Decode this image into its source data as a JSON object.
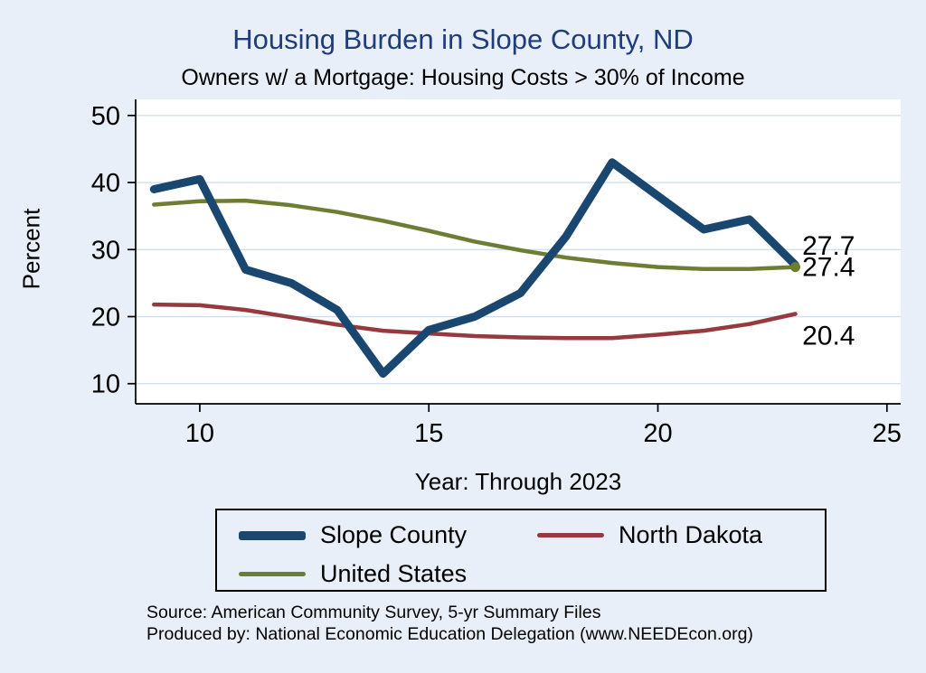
{
  "title": "Housing Burden in Slope County, ND",
  "subtitle": "Owners w/ a Mortgage: Housing Costs > 30% of Income",
  "y_axis_label": "Percent",
  "x_axis_label": "Year: Through 2023",
  "source_line1": "Source: American Community Survey, 5-yr Summary Files",
  "source_line2": "Produced by: National Economic Education Delegation (www.NEEDEcon.org)",
  "legend": {
    "position": "bottom",
    "items": [
      {
        "label": "Slope County",
        "color": "#1a476f",
        "thick": true
      },
      {
        "label": "North Dakota",
        "color": "#953a3e",
        "thick": false
      },
      {
        "label": "United States",
        "color": "#6d7d33",
        "thick": false
      }
    ]
  },
  "colors": {
    "background": "#e9eff8",
    "plot_background": "#ffffff",
    "title": "#1f3d7a",
    "axis": "#000000",
    "gridline": "#cfe0f1"
  },
  "chart_data": {
    "type": "line",
    "title": "Housing Burden in Slope County, ND",
    "subtitle": "Owners w/ a Mortgage: Housing Costs > 30% of Income",
    "xlabel": "Year: Through 2023",
    "ylabel": "Percent",
    "grid": true,
    "legend_position": "bottom",
    "grid_color": "#cfe0f1",
    "x": [
      9,
      10,
      11,
      12,
      13,
      14,
      15,
      16,
      17,
      18,
      19,
      20,
      21,
      22,
      23
    ],
    "x_ticks": [
      10,
      15,
      20,
      25
    ],
    "y_ticks": [
      10,
      20,
      30,
      40,
      50
    ],
    "x_range": [
      8.6,
      25.3
    ],
    "y_range": [
      7,
      52.4
    ],
    "series": [
      {
        "id": "united-states",
        "name": "United States",
        "color": "#6d7d33",
        "width": 4.5,
        "values": [
          36.7,
          37.2,
          37.3,
          36.6,
          35.6,
          34.3,
          32.8,
          31.2,
          29.9,
          28.8,
          28.0,
          27.4,
          27.1,
          27.1,
          27.4
        ],
        "end_label": {
          "text": "27.4",
          "x": 23.15,
          "y": 27.4
        },
        "end_marker": true
      },
      {
        "id": "north-dakota",
        "name": "North Dakota",
        "color": "#953a3e",
        "width": 4.5,
        "values": [
          21.8,
          21.7,
          21.0,
          19.9,
          18.8,
          17.9,
          17.5,
          17.1,
          16.9,
          16.8,
          16.8,
          17.3,
          17.9,
          18.9,
          20.4
        ],
        "end_label": {
          "text": "20.4",
          "x": 23.15,
          "y": 17.2
        },
        "end_marker": false
      },
      {
        "id": "slope-county",
        "name": "Slope County",
        "color": "#1a476f",
        "width": 9,
        "values": [
          39.0,
          40.5,
          27.0,
          25.0,
          21.0,
          11.5,
          18.0,
          20.0,
          23.5,
          32.0,
          43.0,
          38.0,
          33.0,
          34.5,
          27.7
        ],
        "end_label": {
          "text": "27.7",
          "x": 23.15,
          "y": 30.6
        },
        "end_marker": false
      }
    ]
  }
}
